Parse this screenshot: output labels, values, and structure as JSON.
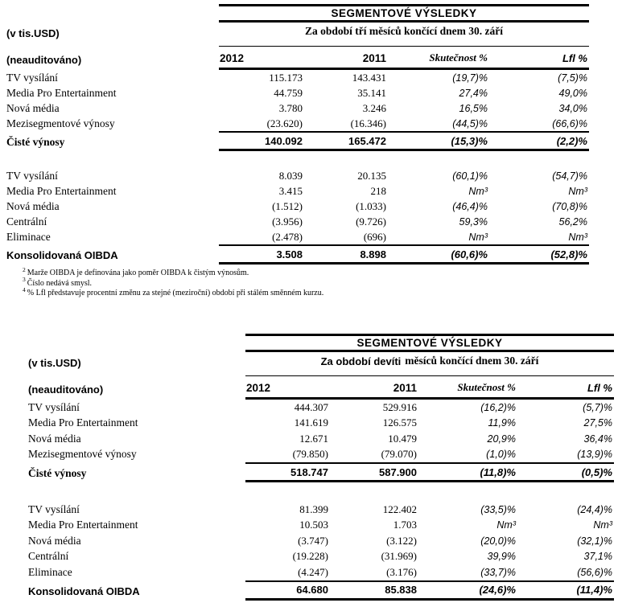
{
  "tables": [
    {
      "title": "SEGMENTOVÉ VÝSLEDKY",
      "subtitle_sans": "",
      "subtitle_serif": "Za období tří měsíců končící dnem 30. září",
      "unit_label": "(v tis.USD)",
      "audit_label": "(neauditováno)",
      "columns": [
        "2012",
        "2011",
        "Skutečnost %",
        "Lfl %"
      ],
      "revenue_rows": [
        {
          "label": "TV vysílání",
          "y2012": "115.173",
          "y2011": "143.431",
          "skutecnost": "(19,7)%",
          "lfl": "(7,5)%"
        },
        {
          "label": "Media Pro Entertainment",
          "y2012": "44.759",
          "y2011": "35.141",
          "skutecnost": "27,4%",
          "lfl": "49,0%"
        },
        {
          "label": "Nová média",
          "y2012": "3.780",
          "y2011": "3.246",
          "skutecnost": "16,5%",
          "lfl": "34,0%"
        },
        {
          "label": "Mezisegmentové výnosy",
          "y2012": "(23.620)",
          "y2011": "(16.346)",
          "skutecnost": "(44,5)%",
          "lfl": "(66,6)%"
        }
      ],
      "revenue_total": {
        "label": "Čisté výnosy",
        "y2012": "140.092",
        "y2011": "165.472",
        "skutecnost": "(15,3)%",
        "lfl": "(2,2)%"
      },
      "oibda_rows": [
        {
          "label": "TV vysílání",
          "y2012": "8.039",
          "y2011": "20.135",
          "skutecnost": "(60,1)%",
          "lfl": "(54,7)%"
        },
        {
          "label": "Media Pro Entertainment",
          "y2012": "3.415",
          "y2011": "218",
          "skutecnost": "Nm³",
          "lfl": "Nm³"
        },
        {
          "label": "Nová média",
          "y2012": "(1.512)",
          "y2011": "(1.033)",
          "skutecnost": "(46,4)%",
          "lfl": "(70,8)%"
        },
        {
          "label": "Centrální",
          "y2012": "(3.956)",
          "y2011": "(9.726)",
          "skutecnost": "59,3%",
          "lfl": "56,2%"
        },
        {
          "label": "Eliminace",
          "y2012": "(2.478)",
          "y2011": "(696)",
          "skutecnost": "Nm³",
          "lfl": "Nm³"
        }
      ],
      "oibda_total": {
        "label": "Konsolidovaná OIBDA",
        "y2012": "3.508",
        "y2011": "8.898",
        "skutecnost": "(60,6)%",
        "lfl": "(52,8)%"
      }
    },
    {
      "title": "SEGMENTOVÉ VÝSLEDKY",
      "subtitle_sans": "Za období devíti",
      "subtitle_serif": "měsíců končící dnem 30. září",
      "unit_label": "(v tis.USD)",
      "audit_label": "(neauditováno)",
      "columns": [
        "2012",
        "2011",
        "Skutečnost %",
        "Lfl %"
      ],
      "revenue_rows": [
        {
          "label": "TV vysílání",
          "y2012": "444.307",
          "y2011": "529.916",
          "skutecnost": "(16,2)%",
          "lfl": "(5,7)%"
        },
        {
          "label": "Media Pro Entertainment",
          "y2012": "141.619",
          "y2011": "126.575",
          "skutecnost": "11,9%",
          "lfl": "27,5%"
        },
        {
          "label": "Nová média",
          "y2012": "12.671",
          "y2011": "10.479",
          "skutecnost": "20,9%",
          "lfl": "36,4%"
        },
        {
          "label": "Mezisegmentové výnosy",
          "y2012": "(79.850)",
          "y2011": "(79.070)",
          "skutecnost": "(1,0)%",
          "lfl": "(13,9)%"
        }
      ],
      "revenue_total": {
        "label": "Čisté výnosy",
        "y2012": "518.747",
        "y2011": "587.900",
        "skutecnost": "(11,8)%",
        "lfl": "(0,5)%"
      },
      "oibda_rows": [
        {
          "label": "TV vysílání",
          "y2012": "81.399",
          "y2011": "122.402",
          "skutecnost": "(33,5)%",
          "lfl": "(24,4)%"
        },
        {
          "label": "Media Pro Entertainment",
          "y2012": "10.503",
          "y2011": "1.703",
          "skutecnost": "Nm³",
          "lfl": "Nm³"
        },
        {
          "label": "Nová média",
          "y2012": "(3.747)",
          "y2011": "(3.122)",
          "skutecnost": "(20,0)%",
          "lfl": "(32,1)%"
        },
        {
          "label": "Centrální",
          "y2012": "(19.228)",
          "y2011": "(31.969)",
          "skutecnost": "39,9%",
          "lfl": "37,1%"
        },
        {
          "label": "Eliminace",
          "y2012": "(4.247)",
          "y2011": "(3.176)",
          "skutecnost": "(33,7)%",
          "lfl": "(56,6)%"
        }
      ],
      "oibda_total": {
        "label": "Konsolidovaná OIBDA",
        "y2012": "64.680",
        "y2011": "85.838",
        "skutecnost": "(24,6)%",
        "lfl": "(11,4)%"
      }
    }
  ],
  "footnotes": [
    {
      "marker": "2",
      "text": "Marže OIBDA je definována jako poměr OIBDA k čistým výnosům."
    },
    {
      "marker": "3",
      "text": "Číslo nedává smysl."
    },
    {
      "marker": "4",
      "text": "% Lfl představuje procentní změnu za stejné (meziroční) období při stálém směnném kurzu."
    }
  ]
}
